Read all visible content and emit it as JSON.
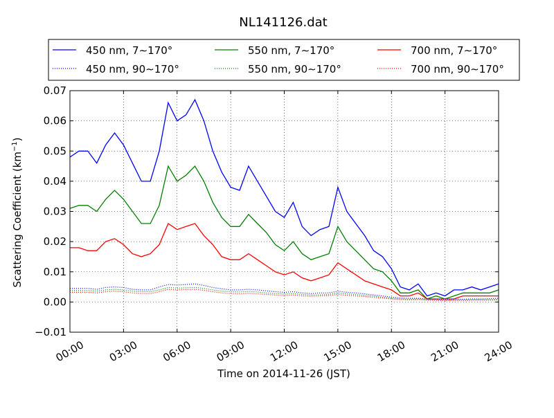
{
  "chart_data": {
    "type": "line",
    "title": "NL141126.dat",
    "xlabel": "Time on 2014-11-26 (JST)",
    "ylabel_main": "Scattering Coefficient (km",
    "ylabel_sup": "−1",
    "ylabel_close": ")",
    "xlim": [
      0,
      24
    ],
    "ylim": [
      -0.01,
      0.07
    ],
    "x_ticks": [
      0,
      3,
      6,
      9,
      12,
      15,
      18,
      21,
      24
    ],
    "x_tick_labels": [
      "00:00",
      "03:00",
      "06:00",
      "09:00",
      "12:00",
      "15:00",
      "18:00",
      "21:00",
      "24:00"
    ],
    "y_ticks": [
      -0.01,
      0,
      0.01,
      0.02,
      0.03,
      0.04,
      0.05,
      0.06,
      0.07
    ],
    "y_tick_labels": [
      "−0.01",
      "0.00",
      "0.01",
      "0.02",
      "0.03",
      "0.04",
      "0.05",
      "0.06",
      "0.07"
    ],
    "grid": true,
    "legend_position": "top",
    "x": [
      0,
      0.5,
      1,
      1.5,
      2,
      2.5,
      3,
      3.5,
      4,
      4.5,
      5,
      5.5,
      6,
      6.5,
      7,
      7.5,
      8,
      8.5,
      9,
      9.5,
      10,
      10.5,
      11,
      11.5,
      12,
      12.5,
      13,
      13.5,
      14,
      14.5,
      15,
      15.5,
      16,
      16.5,
      17,
      17.5,
      18,
      18.5,
      19,
      19.5,
      20,
      20.5,
      21,
      21.5,
      22,
      22.5,
      23,
      23.5,
      24
    ],
    "series": [
      {
        "name": "450 nm, 7∼170°",
        "color": "#0000ff",
        "style": "solid",
        "values": [
          0.048,
          0.05,
          0.05,
          0.046,
          0.052,
          0.056,
          0.052,
          0.046,
          0.04,
          0.04,
          0.05,
          0.066,
          0.06,
          0.062,
          0.067,
          0.06,
          0.05,
          0.043,
          0.038,
          0.037,
          0.045,
          0.04,
          0.035,
          0.03,
          0.028,
          0.033,
          0.025,
          0.022,
          0.024,
          0.025,
          0.038,
          0.03,
          0.026,
          0.022,
          0.017,
          0.015,
          0.011,
          0.005,
          0.004,
          0.006,
          0.002,
          0.003,
          0.002,
          0.004,
          0.004,
          0.005,
          0.004,
          0.005,
          0.006
        ]
      },
      {
        "name": "550 nm, 7∼170°",
        "color": "#008000",
        "style": "solid",
        "values": [
          0.031,
          0.032,
          0.032,
          0.03,
          0.034,
          0.037,
          0.034,
          0.03,
          0.026,
          0.026,
          0.032,
          0.045,
          0.04,
          0.042,
          0.045,
          0.04,
          0.033,
          0.028,
          0.025,
          0.025,
          0.029,
          0.026,
          0.023,
          0.019,
          0.017,
          0.02,
          0.016,
          0.014,
          0.015,
          0.016,
          0.025,
          0.02,
          0.017,
          0.014,
          0.011,
          0.01,
          0.007,
          0.003,
          0.003,
          0.004,
          0.001,
          0.002,
          0.001,
          0.002,
          0.003,
          0.003,
          0.003,
          0.003,
          0.004
        ]
      },
      {
        "name": "700 nm, 7∼170°",
        "color": "#ff0000",
        "style": "solid",
        "values": [
          0.018,
          0.018,
          0.017,
          0.017,
          0.02,
          0.021,
          0.019,
          0.016,
          0.015,
          0.016,
          0.019,
          0.026,
          0.024,
          0.025,
          0.026,
          0.022,
          0.019,
          0.015,
          0.014,
          0.014,
          0.016,
          0.014,
          0.012,
          0.01,
          0.009,
          0.01,
          0.008,
          0.007,
          0.008,
          0.009,
          0.013,
          0.011,
          0.009,
          0.007,
          0.006,
          0.005,
          0.004,
          0.002,
          0.002,
          0.003,
          0.001,
          0.001,
          0.001,
          0.001,
          0.002,
          0.002,
          0.002,
          0.002,
          0.002
        ]
      },
      {
        "name": "450 nm, 90∼170°",
        "color": "#0000ff",
        "style": "dotted",
        "values": [
          0.0045,
          0.0045,
          0.0045,
          0.0042,
          0.0048,
          0.005,
          0.0048,
          0.0042,
          0.004,
          0.004,
          0.005,
          0.0058,
          0.0056,
          0.0058,
          0.006,
          0.0055,
          0.0048,
          0.0044,
          0.004,
          0.004,
          0.0042,
          0.004,
          0.0037,
          0.0034,
          0.0032,
          0.0034,
          0.003,
          0.0028,
          0.003,
          0.003,
          0.0036,
          0.0032,
          0.003,
          0.0027,
          0.0023,
          0.002,
          0.0016,
          0.0013,
          0.0012,
          0.0012,
          0.001,
          0.0009,
          0.0008,
          0.0009,
          0.0009,
          0.001,
          0.001,
          0.0011,
          0.0012
        ]
      },
      {
        "name": "550 nm, 90∼170°",
        "color": "#008000",
        "style": "dotted",
        "values": [
          0.0038,
          0.0038,
          0.0038,
          0.0036,
          0.004,
          0.0042,
          0.004,
          0.0036,
          0.0034,
          0.0034,
          0.004,
          0.0048,
          0.0046,
          0.0047,
          0.0048,
          0.0045,
          0.004,
          0.0036,
          0.0034,
          0.0033,
          0.0035,
          0.0033,
          0.003,
          0.0028,
          0.0026,
          0.0028,
          0.0025,
          0.0023,
          0.0024,
          0.0025,
          0.003,
          0.0027,
          0.0025,
          0.0022,
          0.0019,
          0.0016,
          0.0013,
          0.001,
          0.0009,
          0.001,
          0.0008,
          0.0007,
          0.0006,
          0.0007,
          0.0007,
          0.0008,
          0.0008,
          0.0008,
          0.0009
        ]
      },
      {
        "name": "700 nm, 90∼170°",
        "color": "#ff0000",
        "style": "dotted",
        "values": [
          0.0032,
          0.0032,
          0.0032,
          0.003,
          0.0034,
          0.0036,
          0.0034,
          0.003,
          0.0028,
          0.0028,
          0.0034,
          0.0042,
          0.004,
          0.0041,
          0.0042,
          0.0039,
          0.0034,
          0.003,
          0.0028,
          0.0027,
          0.0029,
          0.0027,
          0.0025,
          0.0023,
          0.0021,
          0.0023,
          0.002,
          0.0019,
          0.002,
          0.0021,
          0.0025,
          0.0022,
          0.002,
          0.0018,
          0.0015,
          0.0013,
          0.001,
          0.0008,
          0.0007,
          0.0008,
          0.0006,
          0.0005,
          0.0004,
          0.0005,
          0.0005,
          0.0006,
          0.0006,
          0.0006,
          0.0007
        ]
      }
    ],
    "legend_order": [
      0,
      1,
      2,
      3,
      4,
      5
    ]
  }
}
